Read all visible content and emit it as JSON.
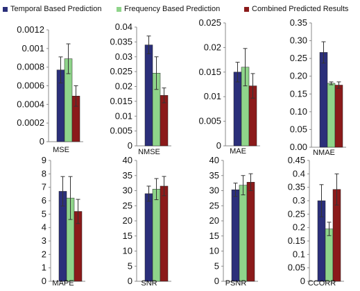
{
  "chart_data": [
    {
      "type": "bar",
      "xlabel": "MSE",
      "yticks": [
        "0",
        "0.0002",
        "0.0004",
        "0.0006",
        "0.0008",
        "0.001",
        "0.0012"
      ],
      "ylim": [
        0,
        0.0012
      ],
      "series": [
        {
          "name": "Temporal Based Prediction",
          "values": [
            0.00077
          ],
          "error": [
            0.00014
          ]
        },
        {
          "name": "Frequency Based Prediction",
          "values": [
            0.00089
          ],
          "error": [
            0.00016
          ]
        },
        {
          "name": "Combined Predicted Results",
          "values": [
            0.00049
          ],
          "error": [
            0.00011
          ]
        }
      ]
    },
    {
      "type": "bar",
      "xlabel": "NMSE",
      "yticks": [
        "0",
        "0.005",
        "0.01",
        "0.015",
        "0.02",
        "0.025",
        "0.03",
        "0.035",
        "0.04"
      ],
      "ylim": [
        0,
        0.04
      ],
      "series": [
        {
          "name": "Temporal Based Prediction",
          "values": [
            0.034
          ],
          "error": [
            0.003
          ]
        },
        {
          "name": "Frequency Based Prediction",
          "values": [
            0.0245
          ],
          "error": [
            0.0055
          ]
        },
        {
          "name": "Combined Predicted Results",
          "values": [
            0.017
          ],
          "error": [
            0.0025
          ]
        }
      ]
    },
    {
      "type": "bar",
      "xlabel": "MAE",
      "yticks": [
        "0",
        "0.005",
        "0.01",
        "0.015",
        "0.02",
        "0.025"
      ],
      "ylim": [
        0,
        0.025
      ],
      "series": [
        {
          "name": "Temporal Based Prediction",
          "values": [
            0.015
          ],
          "error": [
            0.002
          ]
        },
        {
          "name": "Frequency Based Prediction",
          "values": [
            0.016
          ],
          "error": [
            0.0038
          ]
        },
        {
          "name": "Combined Predicted Results",
          "values": [
            0.0122
          ],
          "error": [
            0.0025
          ]
        }
      ]
    },
    {
      "type": "bar",
      "xlabel": "NMAE",
      "yticks": [
        "0.00",
        "0.05",
        "0.10",
        "0.15",
        "0.20",
        "0.25",
        "0.30",
        "0.35"
      ],
      "ylim": [
        0,
        0.35
      ],
      "series": [
        {
          "name": "Temporal Based Prediction",
          "values": [
            0.267
          ],
          "error": [
            0.03
          ]
        },
        {
          "name": "Frequency Based Prediction",
          "values": [
            0.18
          ],
          "error": [
            0.004
          ]
        },
        {
          "name": "Combined Predicted Results",
          "values": [
            0.175
          ],
          "error": [
            0.009
          ]
        }
      ]
    },
    {
      "type": "bar",
      "xlabel": "MAPE",
      "yticks": [
        "0",
        "1",
        "2",
        "3",
        "4",
        "5",
        "6",
        "7",
        "8",
        "9"
      ],
      "ylim": [
        0,
        9
      ],
      "series": [
        {
          "name": "Temporal Based Prediction",
          "values": [
            6.7
          ],
          "error": [
            1.1
          ]
        },
        {
          "name": "Frequency Based Prediction",
          "values": [
            6.2
          ],
          "error": [
            1.6
          ]
        },
        {
          "name": "Combined Predicted Results",
          "values": [
            5.2
          ],
          "error": [
            0.9
          ]
        }
      ]
    },
    {
      "type": "bar",
      "xlabel": "SNR",
      "yticks": [
        "0",
        "5",
        "10",
        "15",
        "20",
        "25",
        "30",
        "35",
        "40"
      ],
      "ylim": [
        0,
        40
      ],
      "series": [
        {
          "name": "Temporal Based Prediction",
          "values": [
            29
          ],
          "error": [
            2.5
          ]
        },
        {
          "name": "Frequency Based Prediction",
          "values": [
            30.5
          ],
          "error": [
            3.5
          ]
        },
        {
          "name": "Combined Predicted Results",
          "values": [
            31.5
          ],
          "error": [
            3.2
          ]
        }
      ]
    },
    {
      "type": "bar",
      "xlabel": "PSNR",
      "yticks": [
        "0",
        "5",
        "10",
        "15",
        "20",
        "25",
        "30",
        "35",
        "40"
      ],
      "ylim": [
        0,
        40
      ],
      "series": [
        {
          "name": "Temporal Based Prediction",
          "values": [
            30.3
          ],
          "error": [
            2.2
          ]
        },
        {
          "name": "Frequency Based Prediction",
          "values": [
            31.8
          ],
          "error": [
            3.2
          ]
        },
        {
          "name": "Combined Predicted Results",
          "values": [
            32.8
          ],
          "error": [
            2.8
          ]
        }
      ]
    },
    {
      "type": "bar",
      "xlabel": "CCORR",
      "yticks": [
        "0",
        "0.05",
        "0.1",
        "0.15",
        "0.2",
        "0.25",
        "0.3",
        "0.35",
        "0.4",
        "0.45"
      ],
      "ylim": [
        0,
        0.45
      ],
      "series": [
        {
          "name": "Temporal Based Prediction",
          "values": [
            0.3
          ],
          "error": [
            0.06
          ]
        },
        {
          "name": "Frequency Based Prediction",
          "values": [
            0.195
          ],
          "error": [
            0.025
          ]
        },
        {
          "name": "Combined Predicted Results",
          "values": [
            0.342
          ],
          "error": [
            0.058
          ]
        }
      ]
    }
  ],
  "legend": [
    {
      "label": "Temporal Based Prediction",
      "color": "#2b2f7a"
    },
    {
      "label": "Frequency Based Prediction",
      "color": "#8fd48a"
    },
    {
      "label": "Combined Predicted Results",
      "color": "#8b1a1a"
    }
  ],
  "colors": {
    "bar_stroke": "#222222",
    "axis": "#8a8a8a",
    "error_bar": "#333333"
  }
}
